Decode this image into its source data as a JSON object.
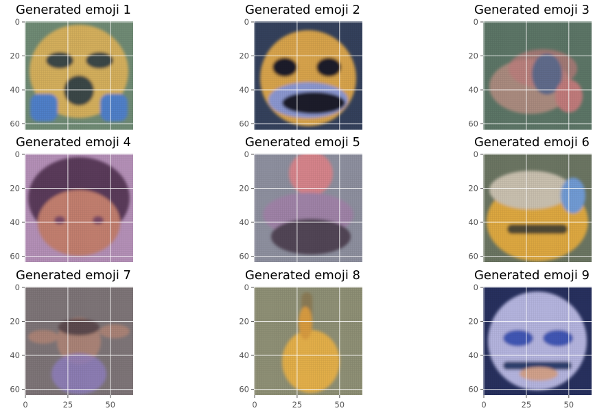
{
  "figure": {
    "panels": [
      {
        "title": "Generated emoji 1",
        "yticks": [
          "0",
          "20",
          "40",
          "60"
        ],
        "xticks": [],
        "colors": {
          "bg": "#6f8a74",
          "face": "#d3ae5c",
          "feature": "#3a4646",
          "accent": "#4f7fc8"
        }
      },
      {
        "title": "Generated emoji 2",
        "yticks": [
          "0",
          "20",
          "40",
          "60"
        ],
        "xticks": [],
        "colors": {
          "bg": "#34415c",
          "face": "#d6a24c",
          "feature": "#1f1f29",
          "accent": "#8a96cf"
        }
      },
      {
        "title": "Generated emoji 3",
        "yticks": [
          "0",
          "20",
          "40",
          "60"
        ],
        "xticks": [],
        "colors": {
          "bg": "#5c7566",
          "face": "#a98a7e",
          "feature": "#5e6a8a",
          "accent": "#bf7a7a"
        }
      },
      {
        "title": "Generated emoji 4",
        "yticks": [
          "0",
          "20",
          "40",
          "60"
        ],
        "xticks": [],
        "colors": {
          "bg": "#b38fb6",
          "face": "#c17e6e",
          "feature": "#5a3a5a",
          "accent": "#7a4a66"
        }
      },
      {
        "title": "Generated emoji 5",
        "yticks": [
          "0",
          "20",
          "40",
          "60"
        ],
        "xticks": [],
        "colors": {
          "bg": "#8d8f9e",
          "face": "#d4838a",
          "feature": "#514554",
          "accent": "#9e82a6"
        }
      },
      {
        "title": "Generated emoji 6",
        "yticks": [
          "0",
          "20",
          "40",
          "60"
        ],
        "xticks": [],
        "colors": {
          "bg": "#6b7562",
          "face": "#dca741",
          "feature": "#4f4a36",
          "accent": "#6f9ad3"
        }
      },
      {
        "title": "Generated emoji 7",
        "yticks": [
          "0",
          "20",
          "40",
          "60"
        ],
        "xticks": [
          "0",
          "25",
          "50"
        ],
        "colors": {
          "bg": "#7d7477",
          "face": "#a98276",
          "feature": "#5c4a4e",
          "accent": "#8f7ec0"
        }
      },
      {
        "title": "Generated emoji 8",
        "yticks": [
          "0",
          "20",
          "40",
          "60"
        ],
        "xticks": [
          "0",
          "25",
          "50"
        ],
        "colors": {
          "bg": "#8e8f75",
          "face": "#e2ae4a",
          "feature": "#8a7a55",
          "accent": "#d69a40"
        }
      },
      {
        "title": "Generated emoji 9",
        "yticks": [
          "0",
          "20",
          "40",
          "60"
        ],
        "xticks": [
          "0",
          "25",
          "50"
        ],
        "colors": {
          "bg": "#27305e",
          "face": "#b3b3dd",
          "feature": "#3f56b3",
          "accent": "#2f3f6e"
        }
      }
    ]
  }
}
